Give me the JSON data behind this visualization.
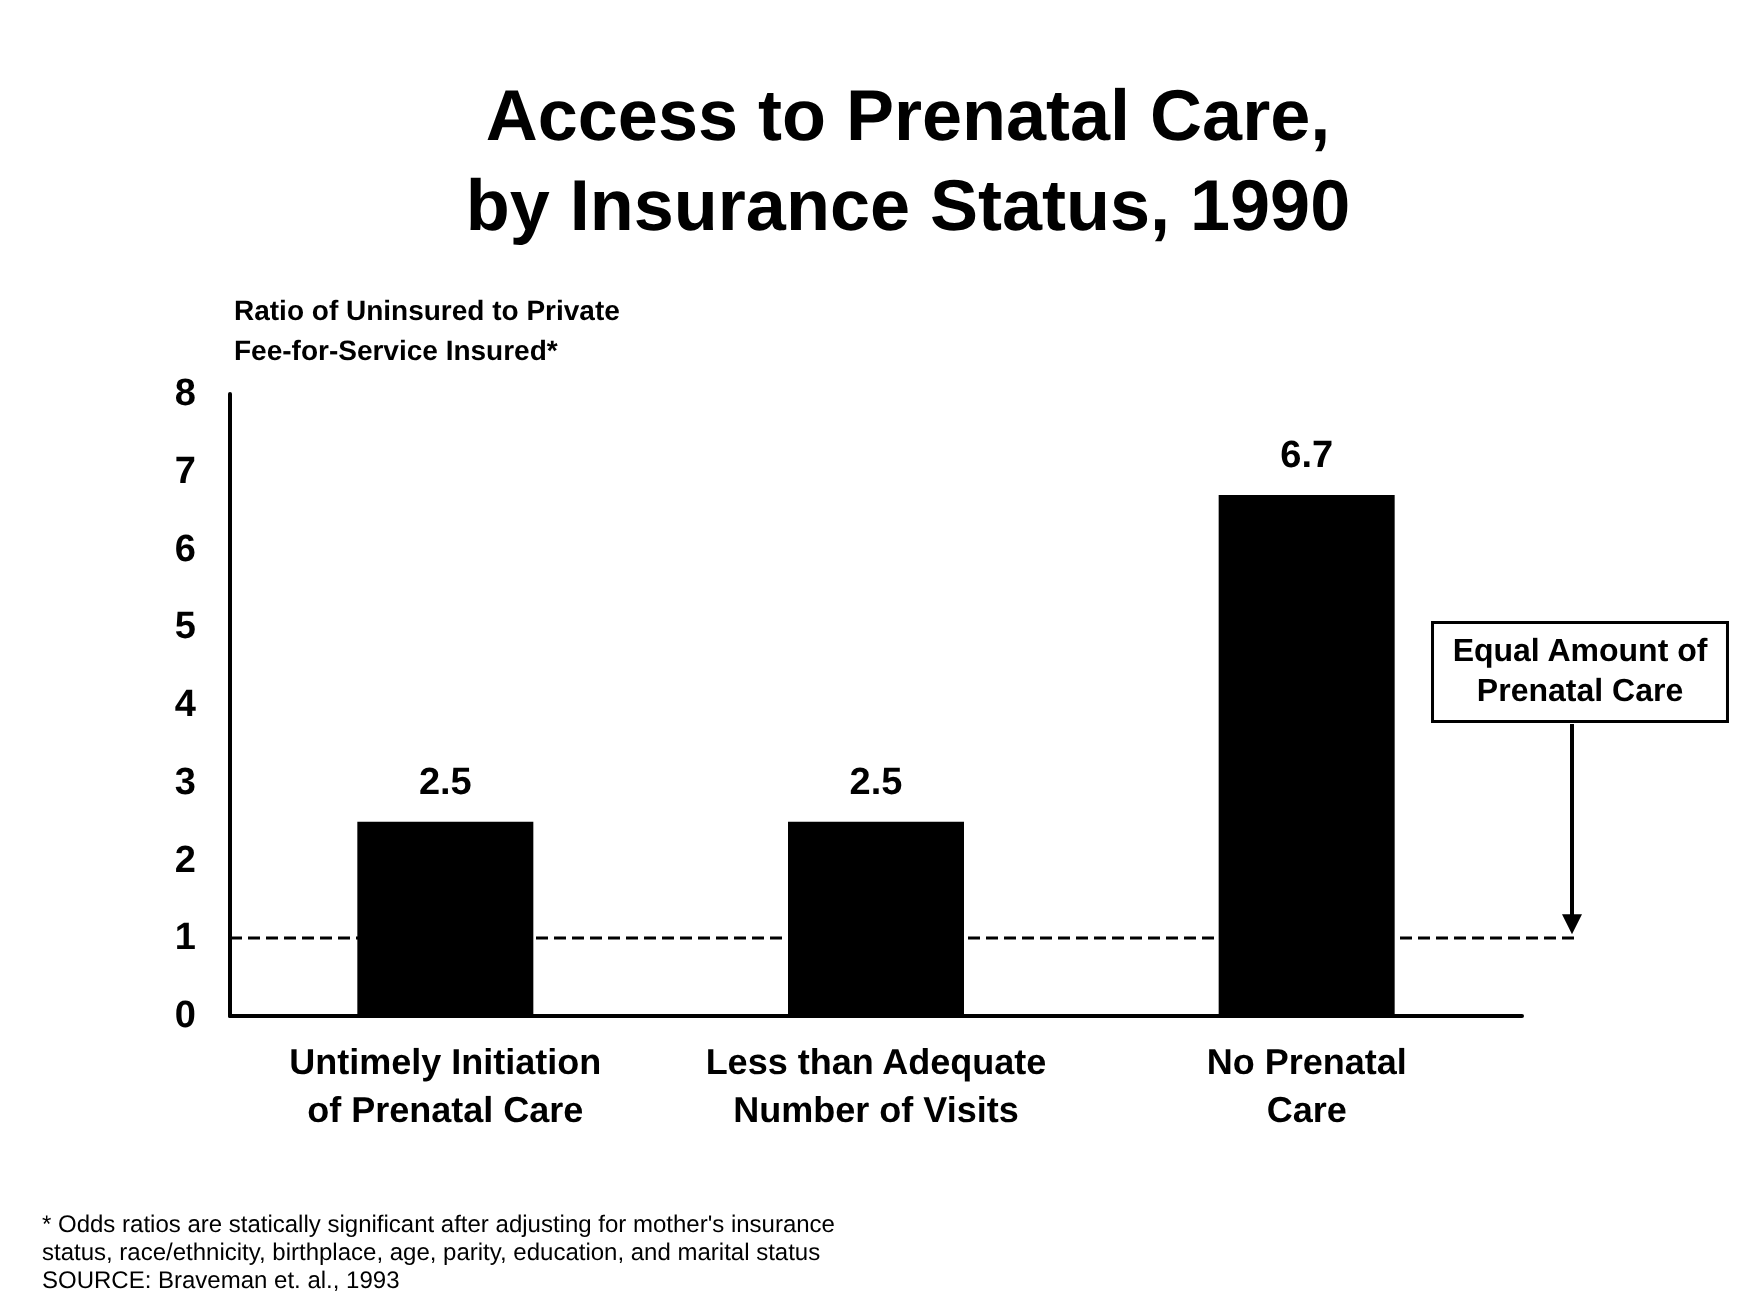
{
  "chart_data": {
    "type": "bar",
    "title": "Access to Prenatal Care,\nby Insurance Status, 1990",
    "ylabel": "Ratio of Uninsured to Private\nFee-for-Service Insured*",
    "categories": [
      "Untimely Initiation\nof Prenatal Care",
      "Less than Adequate\nNumber of Visits",
      "No Prenatal\nCare"
    ],
    "values": [
      2.5,
      2.5,
      6.7
    ],
    "color": "#000000",
    "data_labels": true,
    "ylim": [
      0,
      8
    ],
    "yticks": [
      0,
      1,
      2,
      3,
      4,
      5,
      6,
      7,
      8
    ],
    "ref_lines": [
      {
        "axis": "y",
        "value": 1,
        "label": "Equal Amount of\nPrenatal Care",
        "color": "#000000",
        "line_style": "dashed"
      }
    ],
    "annotations": [
      "* Odds ratios are statically significant after adjusting for mother's insurance status, race/ethnicity, birthplace, age, parity, education, and marital status",
      "SOURCE: Braveman et. al., 1993"
    ]
  }
}
